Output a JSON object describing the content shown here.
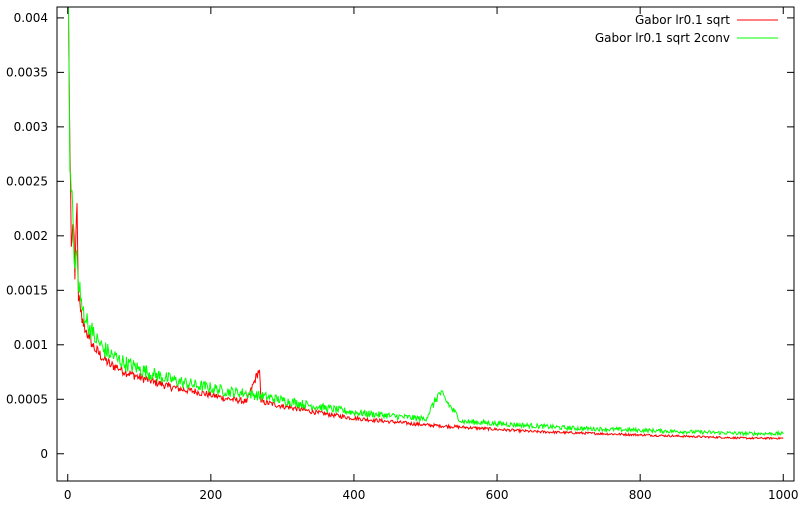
{
  "chart_data": {
    "type": "line",
    "title": "",
    "xlabel": "",
    "ylabel": "",
    "xlim": [
      -15,
      1015
    ],
    "ylim": [
      -0.00025,
      0.0041
    ],
    "xticks": [
      0,
      200,
      400,
      600,
      800,
      1000
    ],
    "yticks": [
      0,
      0.0005,
      0.001,
      0.0015,
      0.002,
      0.0025,
      0.003,
      0.0035,
      0.004
    ],
    "xtick_labels": [
      "0",
      "200",
      "400",
      "600",
      "800",
      "1000"
    ],
    "ytick_labels": [
      "0",
      "0.0005",
      "0.001",
      "0.0015",
      "0.002",
      "0.0025",
      "0.003",
      "0.0035",
      "0.004"
    ],
    "grid": false,
    "legend_position": "top-right",
    "series": [
      {
        "name": "Gabor lr0.1 sqrt",
        "color": "#ff0000",
        "x": [
          1,
          3,
          5,
          8,
          10,
          13,
          15,
          18,
          20,
          25,
          30,
          35,
          40,
          50,
          60,
          70,
          80,
          100,
          120,
          140,
          160,
          180,
          200,
          220,
          250,
          268,
          270,
          300,
          350,
          400,
          450,
          500,
          550,
          600,
          650,
          700,
          750,
          800,
          850,
          900,
          950,
          1000
        ],
        "y": [
          0.0041,
          0.0028,
          0.0019,
          0.0021,
          0.0016,
          0.0023,
          0.0014,
          0.0013,
          0.0012,
          0.00112,
          0.00105,
          0.00098,
          0.00093,
          0.00086,
          0.0008,
          0.00078,
          0.00074,
          0.00069,
          0.00065,
          0.00061,
          0.00058,
          0.00056,
          0.00053,
          0.0005,
          0.00047,
          0.00077,
          0.00047,
          0.00043,
          0.00037,
          0.00032,
          0.00029,
          0.00026,
          0.00024,
          0.00022,
          0.0002,
          0.00019,
          0.00018,
          0.00017,
          0.00016,
          0.00015,
          0.00014,
          0.00014
        ]
      },
      {
        "name": "Gabor lr0.1 sqrt 2conv",
        "color": "#00ff00",
        "x": [
          1,
          3,
          5,
          8,
          10,
          13,
          15,
          18,
          20,
          25,
          30,
          35,
          40,
          50,
          60,
          70,
          80,
          100,
          120,
          140,
          160,
          180,
          200,
          220,
          250,
          300,
          350,
          400,
          450,
          500,
          520,
          550,
          600,
          650,
          700,
          750,
          800,
          850,
          900,
          950,
          1000
        ],
        "y": [
          0.0041,
          0.0026,
          0.0024,
          0.002,
          0.0017,
          0.0018,
          0.0015,
          0.0014,
          0.00132,
          0.00122,
          0.00114,
          0.00108,
          0.00102,
          0.00094,
          0.00089,
          0.00085,
          0.00081,
          0.00076,
          0.00071,
          0.00067,
          0.00064,
          0.00061,
          0.00059,
          0.00056,
          0.00054,
          0.00048,
          0.00042,
          0.00037,
          0.00034,
          0.00031,
          0.00055,
          0.00029,
          0.00027,
          0.00025,
          0.00023,
          0.00022,
          0.00021,
          0.0002,
          0.00019,
          0.00018,
          0.00018
        ]
      }
    ]
  }
}
